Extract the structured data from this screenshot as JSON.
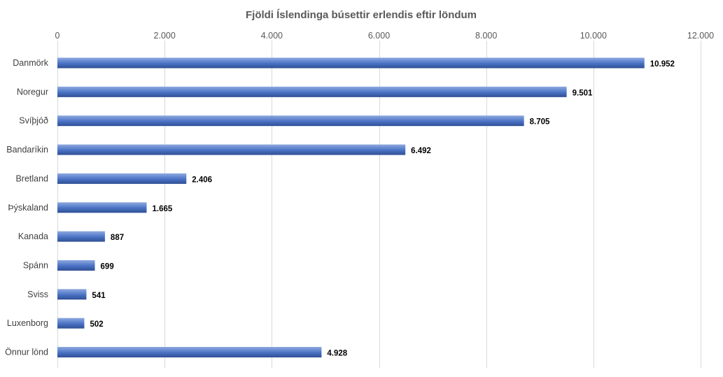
{
  "chart_data": {
    "type": "bar",
    "orientation": "horizontal",
    "title": "Fjöldi Íslendinga búsettir erlendis eftir löndum",
    "xlabel": "",
    "ylabel": "",
    "categories": [
      "Danmörk",
      "Noregur",
      "Svíþjóð",
      "Bandaríkin",
      "Bretland",
      "Þýskaland",
      "Kanada",
      "Spánn",
      "Sviss",
      "Luxenborg",
      "Önnur lönd"
    ],
    "values": [
      10952,
      9501,
      8705,
      6492,
      2406,
      1665,
      887,
      699,
      541,
      502,
      4928
    ],
    "data_labels": [
      "10.952",
      "9.501",
      "8.705",
      "6.492",
      "2.406",
      "1.665",
      "887",
      "699",
      "541",
      "502",
      "4.928"
    ],
    "xlim": [
      0,
      12000
    ],
    "x_ticks": [
      0,
      2000,
      4000,
      6000,
      8000,
      10000,
      12000
    ],
    "x_tick_labels": [
      "0",
      "2.000",
      "4.000",
      "6.000",
      "8.000",
      "10.000",
      "12.000"
    ],
    "x_axis_position": "top",
    "grid": true,
    "legend": false,
    "colors": {
      "bar_light": "#8ea9e0",
      "bar_mid": "#4a72c4",
      "bar_dark": "#2f4f94",
      "gridline": "#d9d9d9",
      "title": "#595959"
    }
  }
}
